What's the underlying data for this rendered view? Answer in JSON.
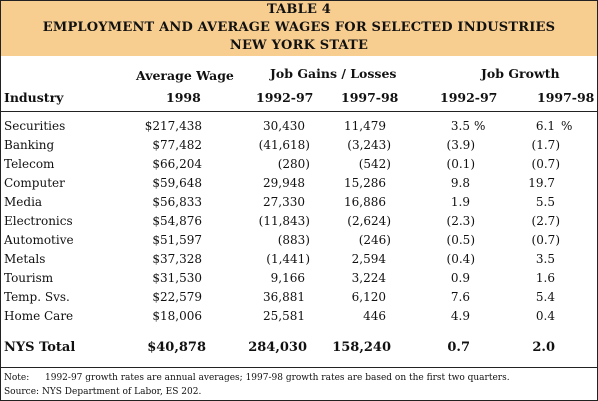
{
  "title": {
    "line1": "TABLE 4",
    "line2": "EMPLOYMENT AND AVERAGE WAGES FOR SELECTED INDUSTRIES",
    "line3": "NEW YORK STATE"
  },
  "headers": {
    "avg_wage_top": "Average Wage",
    "avg_wage_year": "1998",
    "job_gains": "Job Gains / Losses",
    "job_growth": "Job Growth",
    "industry": "Industry",
    "gains_1992_97": "1992-97",
    "gains_1997_98": "1997-98",
    "growth_1992_97": "1992-97",
    "growth_1997_98": "1997-98"
  },
  "rows": [
    {
      "industry": "Securities",
      "wage": "$217,438",
      "gain1": "30,430",
      "gain2": "11,479",
      "grow1": "3.5",
      "grow1_unit": "%",
      "grow2": "6.1",
      "grow2_unit": "%"
    },
    {
      "industry": "Banking",
      "wage": "$77,482",
      "gain1": "(41,618)",
      "gain2": "(3,243)",
      "grow1": "(3.9)",
      "grow1_unit": "",
      "grow2": "(1.7)",
      "grow2_unit": ""
    },
    {
      "industry": "Telecom",
      "wage": "$66,204",
      "gain1": "(280)",
      "gain2": "(542)",
      "grow1": "(0.1)",
      "grow1_unit": "",
      "grow2": "(0.7)",
      "grow2_unit": ""
    },
    {
      "industry": "Computer",
      "wage": "$59,648",
      "gain1": "29,948",
      "gain2": "15,286",
      "grow1": "9.8",
      "grow1_unit": "",
      "grow2": "19.7",
      "grow2_unit": ""
    },
    {
      "industry": "Media",
      "wage": "$56,833",
      "gain1": "27,330",
      "gain2": "16,886",
      "grow1": "1.9",
      "grow1_unit": "",
      "grow2": "5.5",
      "grow2_unit": ""
    },
    {
      "industry": "Electronics",
      "wage": "$54,876",
      "gain1": "(11,843)",
      "gain2": "(2,624)",
      "grow1": "(2.3)",
      "grow1_unit": "",
      "grow2": "(2.7)",
      "grow2_unit": ""
    },
    {
      "industry": "Automotive",
      "wage": "$51,597",
      "gain1": "(883)",
      "gain2": "(246)",
      "grow1": "(0.5)",
      "grow1_unit": "",
      "grow2": "(0.7)",
      "grow2_unit": ""
    },
    {
      "industry": "Metals",
      "wage": "$37,328",
      "gain1": "(1,441)",
      "gain2": "2,594",
      "grow1": "(0.4)",
      "grow1_unit": "",
      "grow2": "3.5",
      "grow2_unit": ""
    },
    {
      "industry": "Tourism",
      "wage": "$31,530",
      "gain1": "9,166",
      "gain2": "3,224",
      "grow1": "0.9",
      "grow1_unit": "",
      "grow2": "1.6",
      "grow2_unit": ""
    },
    {
      "industry": "Temp. Svs.",
      "wage": "$22,579",
      "gain1": "36,881",
      "gain2": "6,120",
      "grow1": "7.6",
      "grow1_unit": "",
      "grow2": "5.4",
      "grow2_unit": ""
    },
    {
      "industry": "Home Care",
      "wage": "$18,006",
      "gain1": "25,581",
      "gain2": "446",
      "grow1": "4.9",
      "grow1_unit": "",
      "grow2": "0.4",
      "grow2_unit": ""
    }
  ],
  "total": {
    "industry": "NYS Total",
    "wage": "$40,878",
    "gain1": "284,030",
    "gain2": "158,240",
    "grow1": "0.7",
    "grow2": "2.0"
  },
  "notes": {
    "note_label": "Note:",
    "note_text": "1992-97 growth rates are annual averages; 1997-98 growth rates are based on the first two quarters.",
    "source": "Source: NYS Department of Labor, ES 202."
  }
}
